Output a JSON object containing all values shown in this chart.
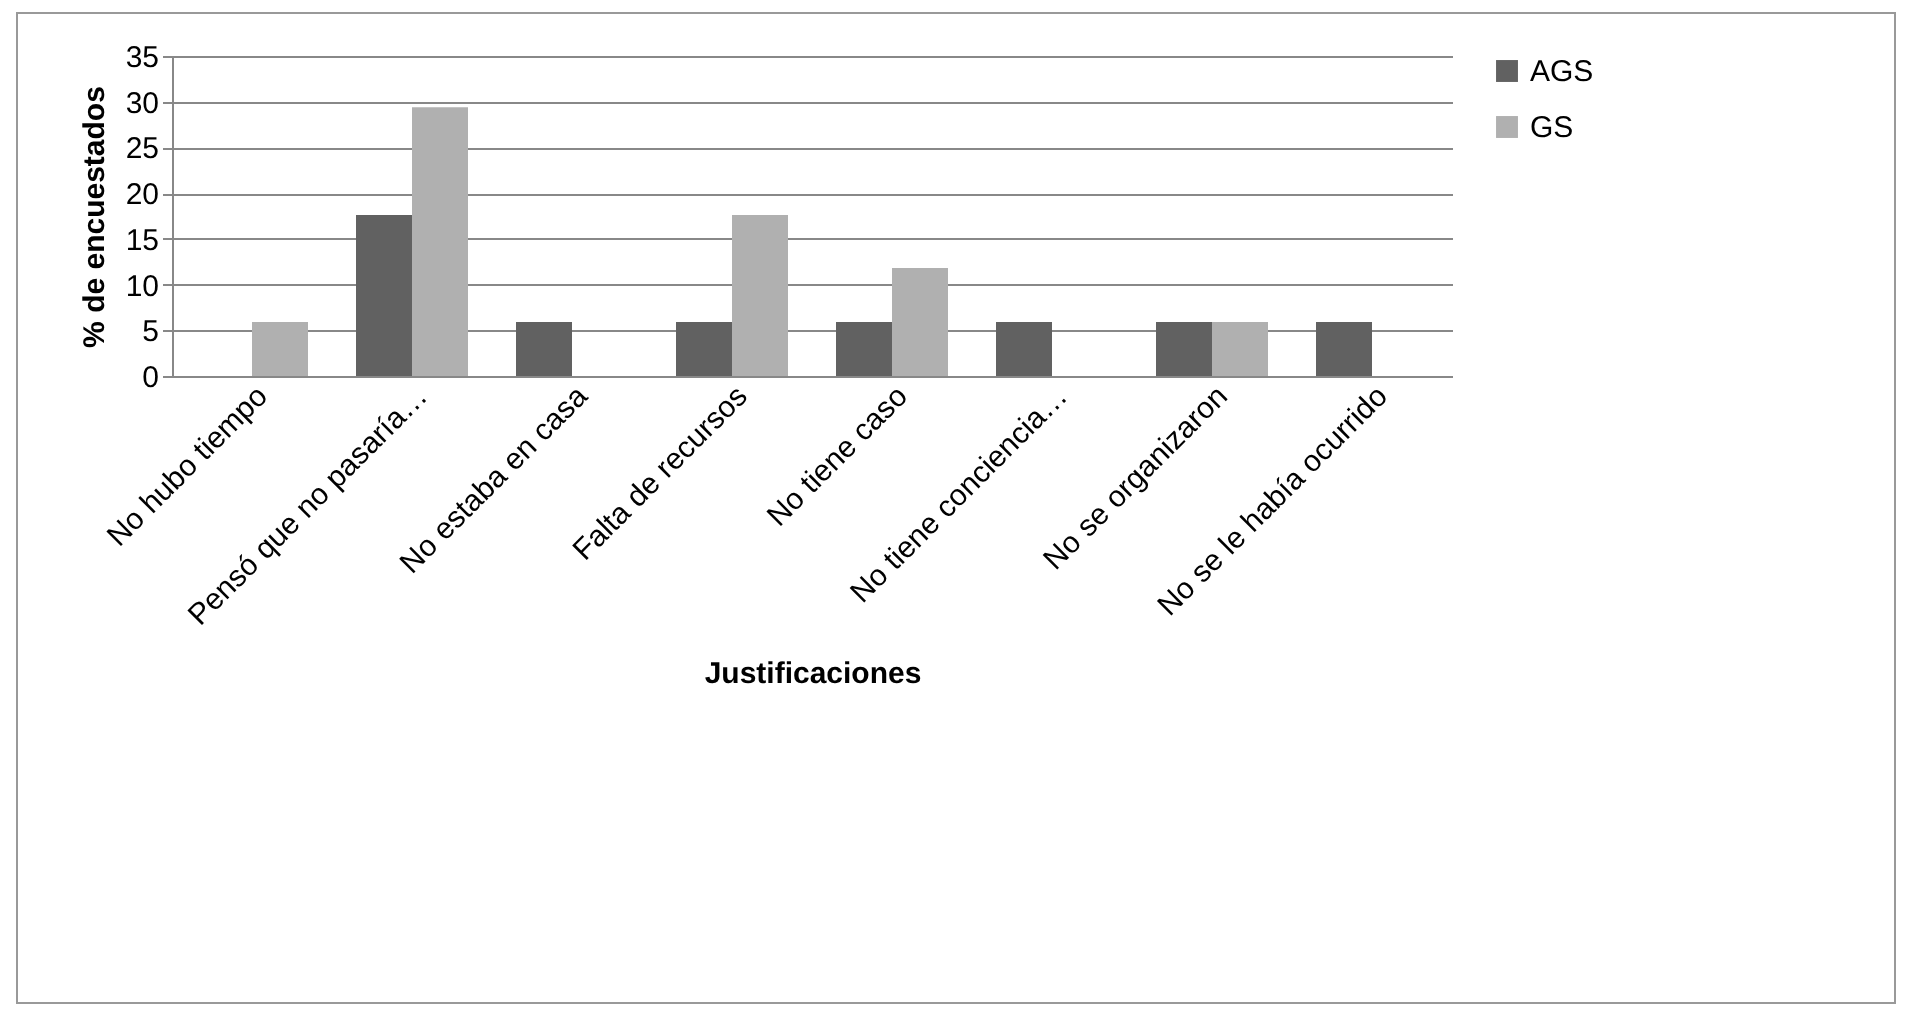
{
  "chart_data": {
    "type": "bar",
    "xlabel": "Justificaciones",
    "ylabel": "% de encuestados",
    "categories": [
      "No hubo tiempo",
      "Pensó que no pasaría…",
      "No estaba en casa",
      "Falta de recursos",
      "No tiene caso",
      "No tiene conciencia…",
      "No se organizaron",
      "No se le había ocurrido"
    ],
    "series": [
      {
        "name": "AGS",
        "color": "#616161",
        "values": [
          0,
          17.6,
          5.9,
          5.9,
          5.9,
          5.9,
          5.9,
          5.9
        ]
      },
      {
        "name": "GS",
        "color": "#b0b0b0",
        "values": [
          5.9,
          29.4,
          0,
          17.6,
          11.8,
          0,
          5.9,
          0
        ]
      }
    ],
    "ylim": [
      0,
      35
    ],
    "yticks": [
      0,
      5,
      10,
      15,
      20,
      25,
      30,
      35
    ],
    "grid": "y",
    "legend": "right"
  }
}
